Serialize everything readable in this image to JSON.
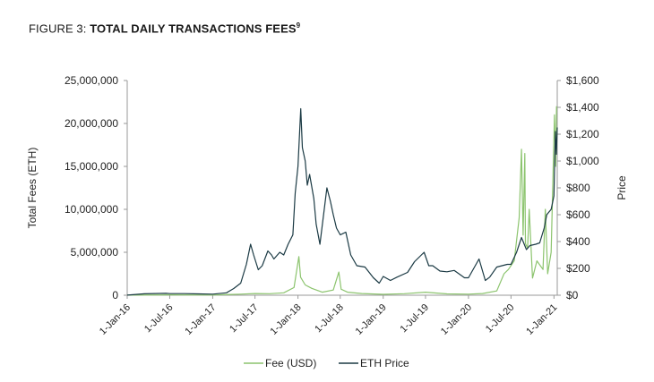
{
  "figure": {
    "prefix": "FIGURE 3: ",
    "title": "TOTAL DAILY TRANSACTIONS FEES",
    "footnote": "9"
  },
  "chart_data": {
    "type": "line",
    "left_axis": {
      "label": "Total Fees (ETH)",
      "range": [
        0,
        25000000
      ],
      "ticks": [
        0,
        5000000,
        10000000,
        15000000,
        20000000,
        25000000
      ],
      "tick_labels": [
        "0",
        "5,000,000",
        "10,000,000",
        "15,000,000",
        "20,000,000",
        "25,000,000"
      ]
    },
    "right_axis": {
      "label": "Price",
      "range": [
        0,
        1600
      ],
      "ticks": [
        0,
        200,
        400,
        600,
        800,
        1000,
        1200,
        1400,
        1600
      ],
      "tick_labels": [
        "$0",
        "$200",
        "$400",
        "$600",
        "$800",
        "$1,000",
        "$1,200",
        "$1,400",
        "$1,600"
      ]
    },
    "x_axis": {
      "range": [
        "2016-01-01",
        "2021-01-15"
      ],
      "ticks": [
        "2016-01-01",
        "2016-07-01",
        "2017-01-01",
        "2017-07-01",
        "2018-01-01",
        "2018-07-01",
        "2019-01-01",
        "2019-07-01",
        "2020-01-01",
        "2020-07-01",
        "2021-01-01"
      ],
      "tick_labels": [
        "1-Jan-16",
        "1-Jul-16",
        "1-Jan-17",
        "1-Jul-17",
        "1-Jan-18",
        "1-Jul-18",
        "1-Jan-19",
        "1-Jul-19",
        "1-Jan-20",
        "1-Jul-20",
        "1-Jan-21"
      ]
    },
    "legend_position": "bottom",
    "grid": false,
    "series": [
      {
        "name": "Fee (USD)",
        "axis": "left",
        "color": "#8cc46e",
        "points": [
          [
            "2016-01-01",
            15000
          ],
          [
            "2016-07-01",
            40000
          ],
          [
            "2017-01-01",
            25000
          ],
          [
            "2017-05-01",
            120000
          ],
          [
            "2017-07-01",
            200000
          ],
          [
            "2017-09-01",
            180000
          ],
          [
            "2017-11-01",
            280000
          ],
          [
            "2017-12-15",
            900000
          ],
          [
            "2018-01-05",
            4500000
          ],
          [
            "2018-01-12",
            2100000
          ],
          [
            "2018-02-01",
            1200000
          ],
          [
            "2018-03-01",
            800000
          ],
          [
            "2018-04-15",
            350000
          ],
          [
            "2018-06-01",
            600000
          ],
          [
            "2018-06-25",
            2700000
          ],
          [
            "2018-07-05",
            700000
          ],
          [
            "2018-08-01",
            350000
          ],
          [
            "2018-10-01",
            200000
          ],
          [
            "2019-01-01",
            100000
          ],
          [
            "2019-04-01",
            180000
          ],
          [
            "2019-07-01",
            350000
          ],
          [
            "2019-10-01",
            160000
          ],
          [
            "2020-01-01",
            120000
          ],
          [
            "2020-03-01",
            200000
          ],
          [
            "2020-05-01",
            500000
          ],
          [
            "2020-06-01",
            2500000
          ],
          [
            "2020-06-20",
            3000000
          ],
          [
            "2020-07-15",
            4000000
          ],
          [
            "2020-08-05",
            9000000
          ],
          [
            "2020-08-15",
            17000000
          ],
          [
            "2020-08-22",
            7000000
          ],
          [
            "2020-08-29",
            16500000
          ],
          [
            "2020-09-01",
            6000000
          ],
          [
            "2020-09-10",
            5500000
          ],
          [
            "2020-09-17",
            10000000
          ],
          [
            "2020-10-01",
            2000000
          ],
          [
            "2020-10-20",
            4000000
          ],
          [
            "2020-11-15",
            3000000
          ],
          [
            "2020-11-25",
            10000000
          ],
          [
            "2020-12-05",
            2500000
          ],
          [
            "2020-12-20",
            5000000
          ],
          [
            "2021-01-03",
            21000000
          ],
          [
            "2021-01-08",
            15000000
          ],
          [
            "2021-01-12",
            22000000
          ]
        ]
      },
      {
        "name": "ETH Price",
        "axis": "right",
        "color": "#1b3a44",
        "points": [
          [
            "2016-01-01",
            1
          ],
          [
            "2016-03-15",
            11
          ],
          [
            "2016-06-15",
            14
          ],
          [
            "2016-07-01",
            12
          ],
          [
            "2016-09-01",
            12
          ],
          [
            "2016-11-01",
            10
          ],
          [
            "2017-01-01",
            8
          ],
          [
            "2017-03-01",
            18
          ],
          [
            "2017-04-01",
            50
          ],
          [
            "2017-05-01",
            90
          ],
          [
            "2017-05-25",
            230
          ],
          [
            "2017-06-12",
            380
          ],
          [
            "2017-06-25",
            300
          ],
          [
            "2017-07-15",
            190
          ],
          [
            "2017-08-01",
            220
          ],
          [
            "2017-08-25",
            330
          ],
          [
            "2017-09-10",
            300
          ],
          [
            "2017-09-20",
            270
          ],
          [
            "2017-10-15",
            320
          ],
          [
            "2017-11-01",
            300
          ],
          [
            "2017-11-20",
            380
          ],
          [
            "2017-12-10",
            450
          ],
          [
            "2017-12-20",
            760
          ],
          [
            "2018-01-01",
            960
          ],
          [
            "2018-01-13",
            1390
          ],
          [
            "2018-01-20",
            1100
          ],
          [
            "2018-02-01",
            1000
          ],
          [
            "2018-02-10",
            820
          ],
          [
            "2018-02-20",
            900
          ],
          [
            "2018-03-10",
            720
          ],
          [
            "2018-03-20",
            530
          ],
          [
            "2018-04-05",
            380
          ],
          [
            "2018-04-25",
            660
          ],
          [
            "2018-05-05",
            800
          ],
          [
            "2018-05-20",
            700
          ],
          [
            "2018-06-01",
            600
          ],
          [
            "2018-06-15",
            500
          ],
          [
            "2018-07-01",
            450
          ],
          [
            "2018-07-25",
            470
          ],
          [
            "2018-08-15",
            300
          ],
          [
            "2018-09-10",
            220
          ],
          [
            "2018-10-15",
            210
          ],
          [
            "2018-11-20",
            130
          ],
          [
            "2018-12-15",
            90
          ],
          [
            "2019-01-01",
            140
          ],
          [
            "2019-02-01",
            110
          ],
          [
            "2019-03-01",
            135
          ],
          [
            "2019-04-15",
            170
          ],
          [
            "2019-05-15",
            250
          ],
          [
            "2019-06-25",
            320
          ],
          [
            "2019-07-15",
            220
          ],
          [
            "2019-08-01",
            220
          ],
          [
            "2019-09-01",
            180
          ],
          [
            "2019-10-01",
            175
          ],
          [
            "2019-11-01",
            185
          ],
          [
            "2019-12-15",
            130
          ],
          [
            "2020-01-01",
            130
          ],
          [
            "2020-02-15",
            270
          ],
          [
            "2020-03-13",
            110
          ],
          [
            "2020-04-01",
            135
          ],
          [
            "2020-05-01",
            210
          ],
          [
            "2020-06-15",
            230
          ],
          [
            "2020-07-01",
            230
          ],
          [
            "2020-07-25",
            320
          ],
          [
            "2020-08-15",
            430
          ],
          [
            "2020-09-05",
            340
          ],
          [
            "2020-09-20",
            370
          ],
          [
            "2020-10-15",
            380
          ],
          [
            "2020-11-01",
            390
          ],
          [
            "2020-11-20",
            500
          ],
          [
            "2020-12-01",
            600
          ],
          [
            "2020-12-20",
            640
          ],
          [
            "2021-01-01",
            740
          ],
          [
            "2021-01-07",
            1220
          ],
          [
            "2021-01-11",
            1050
          ],
          [
            "2021-01-15",
            1250
          ]
        ]
      }
    ]
  }
}
